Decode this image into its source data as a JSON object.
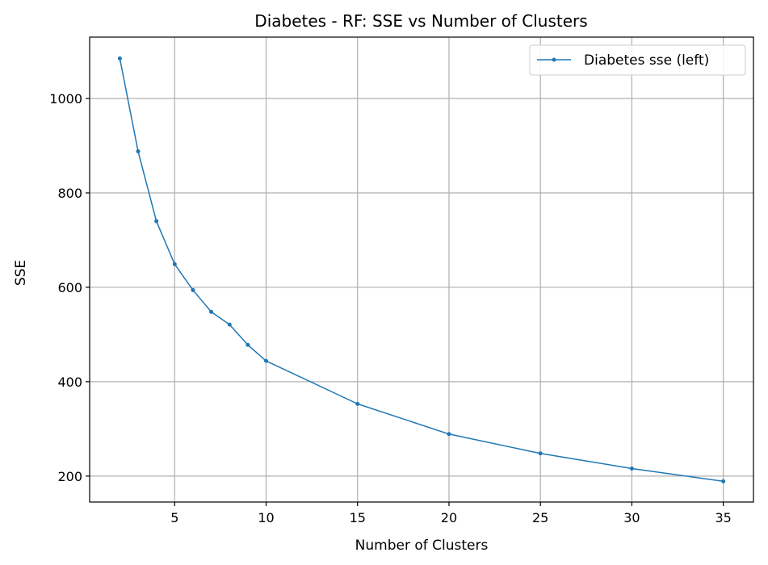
{
  "chart_data": {
    "type": "line",
    "title": "Diabetes - RF: SSE vs Number of Clusters",
    "xlabel": "Number of Clusters",
    "ylabel": "SSE",
    "xlim": [
      0.35,
      36.65
    ],
    "ylim": [
      145,
      1130
    ],
    "xticks": [
      5,
      10,
      15,
      20,
      25,
      30,
      35
    ],
    "yticks": [
      200,
      400,
      600,
      800,
      1000
    ],
    "grid": true,
    "legend_position": "top-right",
    "series": [
      {
        "name": "Diabetes sse (left)",
        "color": "#1f77b4",
        "x": [
          2,
          3,
          4,
          5,
          6,
          7,
          8,
          9,
          10,
          15,
          20,
          25,
          30,
          35
        ],
        "y": [
          1085,
          888,
          740,
          649,
          594,
          548,
          521,
          478,
          444,
          353,
          289,
          248,
          216,
          189
        ]
      }
    ]
  }
}
